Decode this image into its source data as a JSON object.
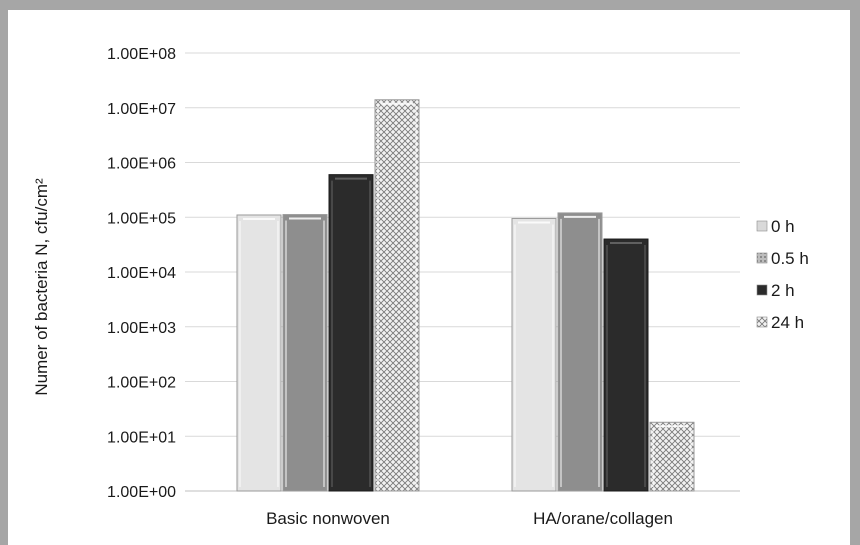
{
  "chart_data": {
    "type": "bar",
    "title": "",
    "xlabel": "",
    "ylabel": "Numer of bacteria N, cfu/cm²",
    "yscale": "log",
    "ylim": [
      1,
      100000000
    ],
    "yticks": [
      1,
      10,
      100,
      1000,
      10000,
      100000,
      1000000,
      10000000,
      100000000
    ],
    "ytick_labels": [
      "1.00E+00",
      "1.00E+01",
      "1.00E+02",
      "1.00E+03",
      "1.00E+04",
      "1.00E+05",
      "1.00E+06",
      "1.00E+07",
      "1.00E+08"
    ],
    "categories": [
      "Basic nonwoven",
      "HA/orane/collagen"
    ],
    "series": [
      {
        "name": "0 h",
        "values": [
          110000,
          95000
        ],
        "color": "#e3e3e3"
      },
      {
        "name": "0.5 h",
        "values": [
          112000,
          120000
        ],
        "color": "#8c8c8c"
      },
      {
        "name": "2 h",
        "values": [
          600000,
          40000
        ],
        "color": "#2b2b2b"
      },
      {
        "name": "24 h",
        "values": [
          14000000,
          18
        ],
        "color": "#cfcfcf"
      }
    ],
    "legend_position": "right",
    "grid": true
  }
}
